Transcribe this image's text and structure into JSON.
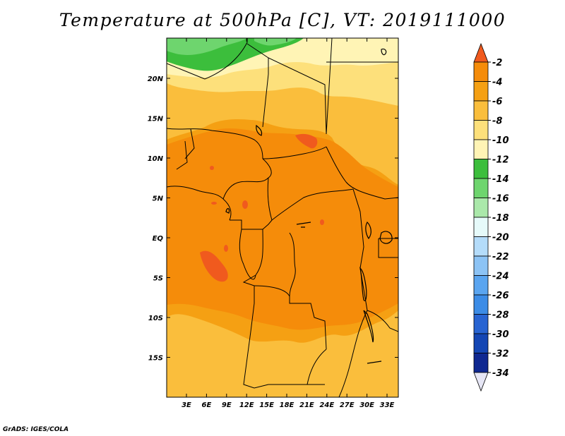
{
  "title": "Temperature at 500hPa [C], VT: 2019111000",
  "footer": "GrADS: IGES/COLA",
  "map": {
    "lon_labels": [
      "3E",
      "6E",
      "9E",
      "12E",
      "15E",
      "18E",
      "21E",
      "24E",
      "27E",
      "30E",
      "33E"
    ],
    "lat_labels": [
      "20N",
      "15N",
      "10N",
      "5N",
      "EQ",
      "5S",
      "10S",
      "15S"
    ]
  },
  "colorbar": {
    "labels": [
      "-2",
      "-4",
      "-6",
      "-8",
      "-10",
      "-12",
      "-14",
      "-16",
      "-18",
      "-20",
      "-22",
      "-24",
      "-26",
      "-28",
      "-30",
      "-32",
      "-34"
    ],
    "colors": [
      "#f05a1e",
      "#f58c0a",
      "#f5a013",
      "#fabe3c",
      "#fde07b",
      "#fff4b5",
      "#3cbe3c",
      "#6ed56e",
      "#aae8aa",
      "#e6fafa",
      "#b4dcfa",
      "#8cc3f5",
      "#5aa5f0",
      "#3c8ce6",
      "#2864d2",
      "#1446b4",
      "#0f2891",
      "#0a0a64",
      "#e6e6f5"
    ]
  }
}
